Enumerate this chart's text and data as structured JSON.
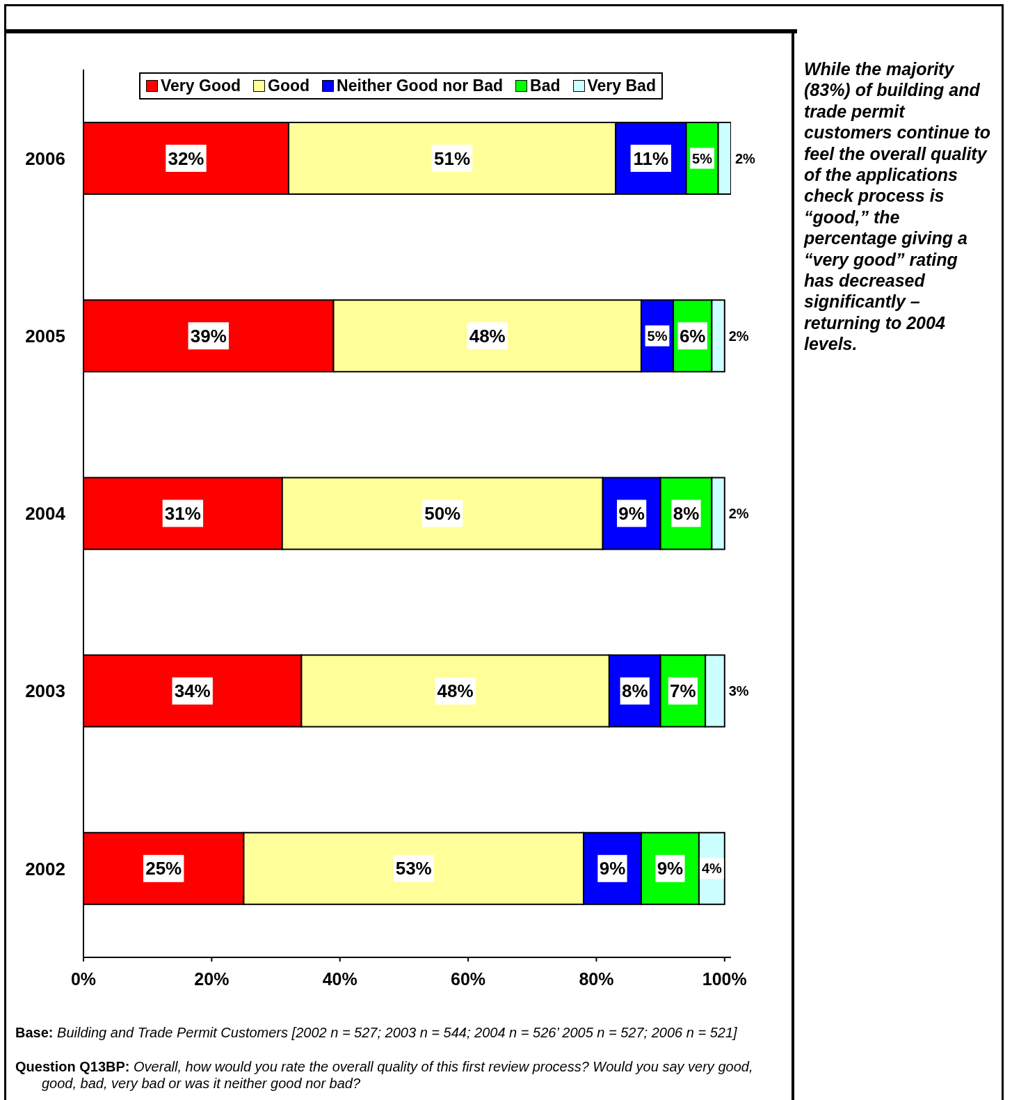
{
  "chart_data": {
    "type": "bar",
    "orientation": "horizontal",
    "stacked": true,
    "legend": "top",
    "categories": [
      "2006",
      "2005",
      "2004",
      "2003",
      "2002"
    ],
    "series": [
      {
        "name": "Very Good",
        "color": "#ff0000",
        "values": [
          32,
          39,
          31,
          34,
          25
        ],
        "value_labels": [
          "32%",
          "39%",
          "31%",
          "34%",
          "25%"
        ]
      },
      {
        "name": "Good",
        "color": "#ffff99",
        "values": [
          51,
          48,
          50,
          48,
          53
        ],
        "value_labels": [
          "51%",
          "48%",
          "50%",
          "48%",
          "53%"
        ]
      },
      {
        "name": "Neither Good nor Bad",
        "color": "#0000ff",
        "values": [
          11,
          5,
          9,
          8,
          9
        ],
        "value_labels": [
          "11%",
          "5%",
          "9%",
          "8%",
          "9%"
        ]
      },
      {
        "name": "Bad",
        "color": "#00ff00",
        "values": [
          5,
          6,
          8,
          7,
          9
        ],
        "value_labels": [
          "5%",
          "6%",
          "8%",
          "7%",
          "9%"
        ]
      },
      {
        "name": "Very Bad",
        "color": "#ccffff",
        "values": [
          2,
          2,
          2,
          3,
          4
        ],
        "value_labels": [
          "2%",
          "2%",
          "2%",
          "3%",
          "4%"
        ]
      }
    ],
    "xlim": [
      0,
      101
    ],
    "xticks": [
      {
        "value": 0,
        "label": "0%"
      },
      {
        "value": 20,
        "label": "20%"
      },
      {
        "value": 40,
        "label": "40%"
      },
      {
        "value": 60,
        "label": "60%"
      },
      {
        "value": 80,
        "label": "80%"
      },
      {
        "value": 100,
        "label": "100%"
      }
    ],
    "grid": false,
    "annotations": [
      "While the majority (83%) of building and trade permit customers continue to feel the overall quality of the applications check process is “good,” the percentage giving a “very good” rating has decreased significantly – returning to 2004 levels.",
      "Base: Building and Trade Permit Customers [2002 n = 527; 2003 n = 544; 2004 n = 526’ 2005 n = 527; 2006 n = 521]",
      "Question Q13BP: Overall, how would you rate the overall quality of this first review process? Would you say very good, good, bad, very bad or was it neither good nor bad?"
    ]
  }
}
